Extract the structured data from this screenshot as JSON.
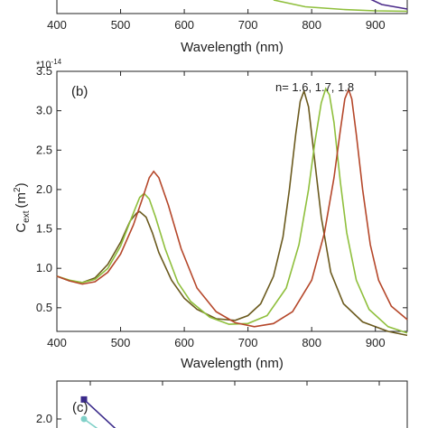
{
  "chart_data": [
    {
      "panel": "",
      "type": "line",
      "xlabel": "Wavelength (nm)",
      "xlim": [
        400,
        950
      ],
      "x_ticks": [
        "400",
        "500",
        "600",
        "700",
        "800",
        "900"
      ],
      "series": [
        {
          "color": "#8fbf3c",
          "x": [
            740,
            790,
            850,
            900,
            950
          ],
          "y": [
            0.06,
            0.03,
            0.018,
            0.012,
            0.01
          ]
        },
        {
          "color": "#4b2a8a",
          "x": [
            880,
            910,
            950
          ],
          "y": [
            0.08,
            0.04,
            0.02
          ]
        }
      ]
    },
    {
      "panel": "(b)",
      "type": "line",
      "xlabel": "Wavelength (nm)",
      "ylabel": "C_ext (m^2)",
      "ylabel_main": "C",
      "ylabel_sub": "ext",
      "ylabel_unit": "(m",
      "ylabel_sup": "2",
      "ylabel_close": ")",
      "scale_base": "*10",
      "scale_exp": "-14",
      "annotation": "n= 1.6, 1.7, 1.8",
      "xlim": [
        400,
        950
      ],
      "ylim": [
        0.2,
        3.5
      ],
      "x_ticks": [
        "400",
        "500",
        "600",
        "700",
        "800",
        "900"
      ],
      "y_ticks": [
        "0.5",
        "1.0",
        "1.5",
        "2.0",
        "2.5",
        "3.0",
        "3.5"
      ],
      "series": [
        {
          "label": "n=1.6",
          "color": "#6b5a1e",
          "x": [
            400,
            420,
            440,
            460,
            480,
            500,
            515,
            525,
            530,
            540,
            550,
            560,
            580,
            600,
            620,
            650,
            680,
            700,
            720,
            740,
            755,
            765,
            775,
            782,
            788,
            795,
            805,
            815,
            830,
            850,
            880,
            920,
            950
          ],
          "y": [
            0.9,
            0.84,
            0.82,
            0.88,
            1.05,
            1.33,
            1.6,
            1.7,
            1.72,
            1.65,
            1.45,
            1.2,
            0.85,
            0.62,
            0.48,
            0.36,
            0.34,
            0.4,
            0.55,
            0.9,
            1.4,
            2.0,
            2.7,
            3.12,
            3.25,
            3.05,
            2.35,
            1.65,
            0.95,
            0.55,
            0.32,
            0.2,
            0.15
          ]
        },
        {
          "label": "n=1.7",
          "color": "#8fbf3c",
          "x": [
            400,
            420,
            440,
            460,
            480,
            500,
            520,
            530,
            537,
            545,
            555,
            570,
            590,
            610,
            640,
            670,
            700,
            730,
            760,
            780,
            795,
            805,
            815,
            822,
            828,
            835,
            845,
            855,
            870,
            890,
            920,
            950
          ],
          "y": [
            0.9,
            0.85,
            0.82,
            0.86,
            1.0,
            1.28,
            1.7,
            1.9,
            1.95,
            1.88,
            1.65,
            1.25,
            0.82,
            0.58,
            0.38,
            0.29,
            0.3,
            0.4,
            0.75,
            1.3,
            2.0,
            2.6,
            3.1,
            3.28,
            3.2,
            2.85,
            2.1,
            1.45,
            0.85,
            0.48,
            0.26,
            0.18
          ]
        },
        {
          "label": "n=1.8",
          "color": "#b5472a",
          "x": [
            400,
            420,
            440,
            460,
            480,
            500,
            520,
            535,
            545,
            552,
            560,
            575,
            595,
            620,
            650,
            680,
            710,
            740,
            770,
            800,
            820,
            835,
            845,
            852,
            858,
            863,
            870,
            880,
            892,
            905,
            925,
            950
          ],
          "y": [
            0.9,
            0.84,
            0.8,
            0.83,
            0.95,
            1.18,
            1.55,
            1.9,
            2.15,
            2.23,
            2.15,
            1.8,
            1.25,
            0.75,
            0.45,
            0.31,
            0.26,
            0.3,
            0.45,
            0.85,
            1.45,
            2.15,
            2.75,
            3.15,
            3.27,
            3.15,
            2.7,
            2.0,
            1.3,
            0.85,
            0.52,
            0.35
          ]
        }
      ]
    },
    {
      "panel": "(c)",
      "type": "line",
      "y_ticks": [
        "2.0"
      ],
      "series": [
        {
          "color": "#3a2a8a",
          "marker": "square",
          "x": [
            0,
            0.35
          ],
          "y": [
            2.3,
            1.85
          ]
        },
        {
          "color": "#7fd0c8",
          "marker": "circle",
          "x": [
            0,
            0.15
          ],
          "y": [
            2.0,
            1.85
          ]
        }
      ]
    }
  ]
}
